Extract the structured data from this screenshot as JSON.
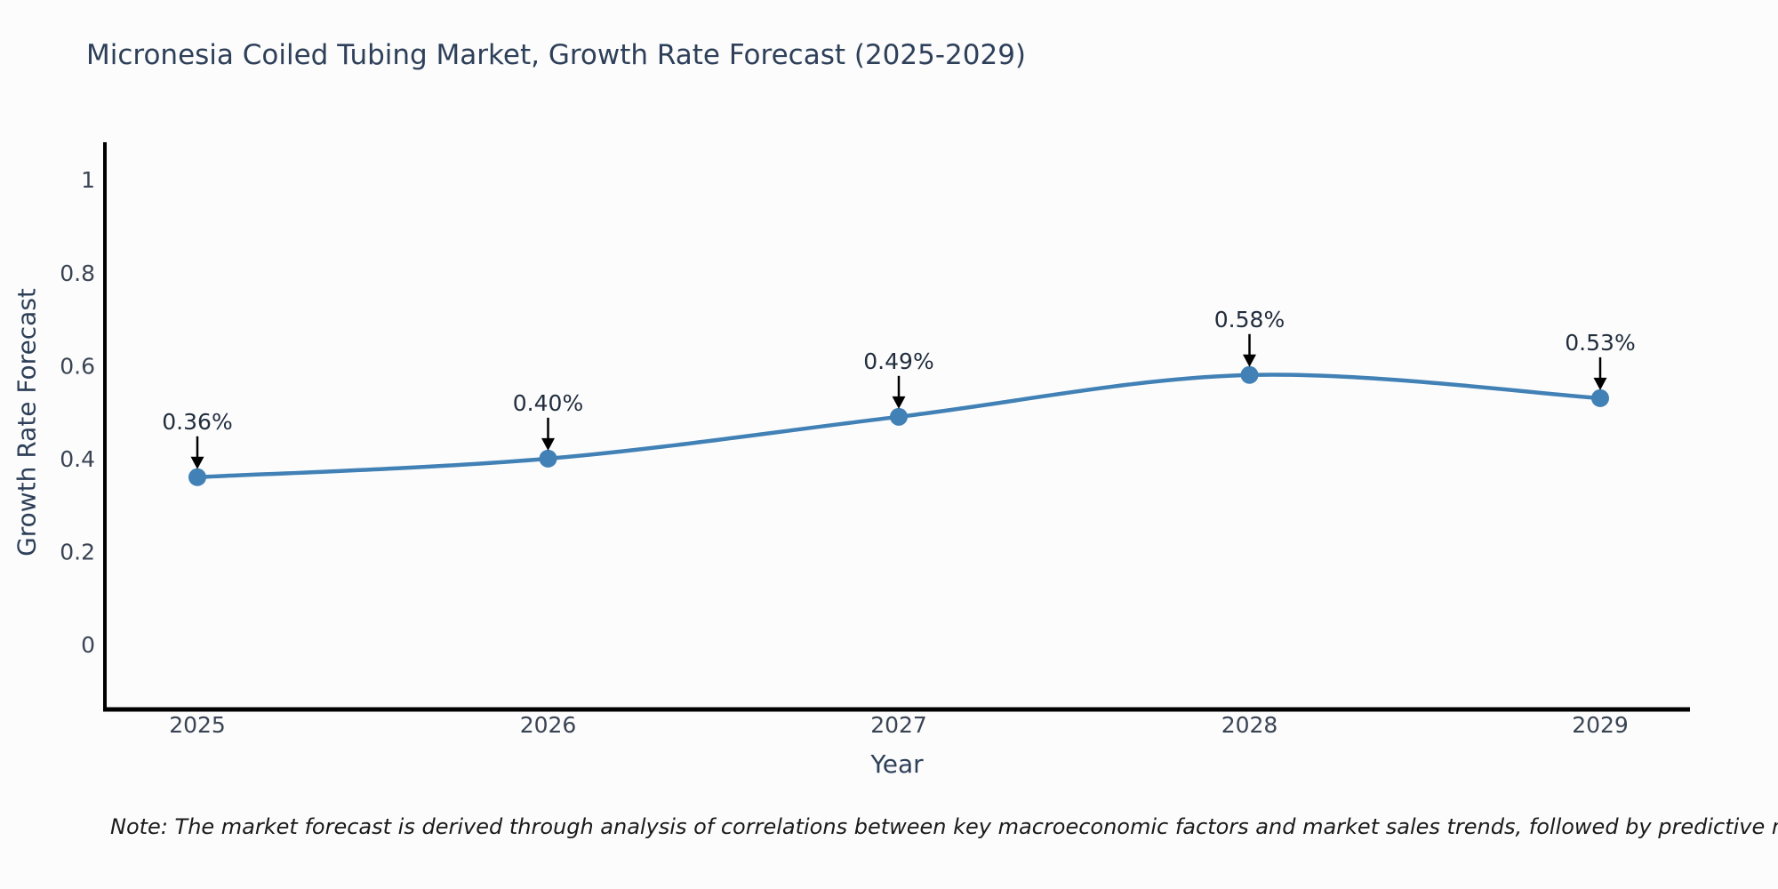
{
  "colors": {
    "background": "#fcfcfc",
    "axis": "#000000",
    "line": "#4181b6",
    "marker": "#4181b6",
    "annotation_arrow": "#000000",
    "title_text": "#2e4059",
    "tick_text": "#3a4454",
    "note_text": "#1a1a1a"
  },
  "chart_data": {
    "type": "line",
    "title": "Micronesia Coiled Tubing Market, Growth Rate Forecast (2025-2029)",
    "xlabel": "Year",
    "ylabel": "Growth Rate Forecast",
    "categories": [
      "2025",
      "2026",
      "2027",
      "2028",
      "2029"
    ],
    "values": [
      0.36,
      0.4,
      0.49,
      0.58,
      0.53
    ],
    "point_labels": [
      "0.36%",
      "0.40%",
      "0.49%",
      "0.58%",
      "0.53%"
    ],
    "yticks": [
      0,
      0.2,
      0.4,
      0.6,
      0.8,
      1
    ],
    "ytick_labels": [
      "0",
      "0.2",
      "0.4",
      "0.6",
      "0.8",
      "1"
    ],
    "ylim": [
      -0.14,
      1.08
    ],
    "grid": false,
    "legend": "none",
    "line_style": "smooth-spline",
    "marker_style": "circle",
    "annotation_style": "value-label-with-down-arrow"
  },
  "note": {
    "text": "Note: The market forecast is derived through analysis of correlations between key macroeconomic factors and market sales trends, followed by predictive modeling to project future sales"
  }
}
